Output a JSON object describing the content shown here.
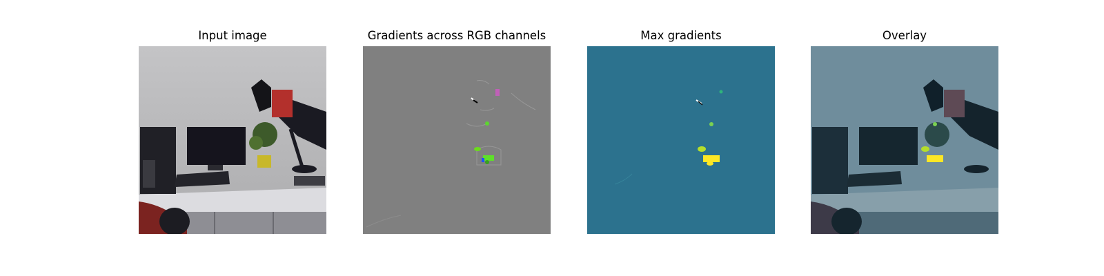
{
  "panels": [
    {
      "title": "Input image"
    },
    {
      "title": "Gradients across RGB channels"
    },
    {
      "title": "Max gradients"
    },
    {
      "title": "Overlay"
    }
  ],
  "colors": {
    "background": "#ffffff",
    "gradient_gray": "#808080",
    "max_grad_teal": "#2c728e",
    "highlight_yellow": "#fde725",
    "highlight_green": "#5ec962",
    "gripper_red": "#b3302c"
  }
}
